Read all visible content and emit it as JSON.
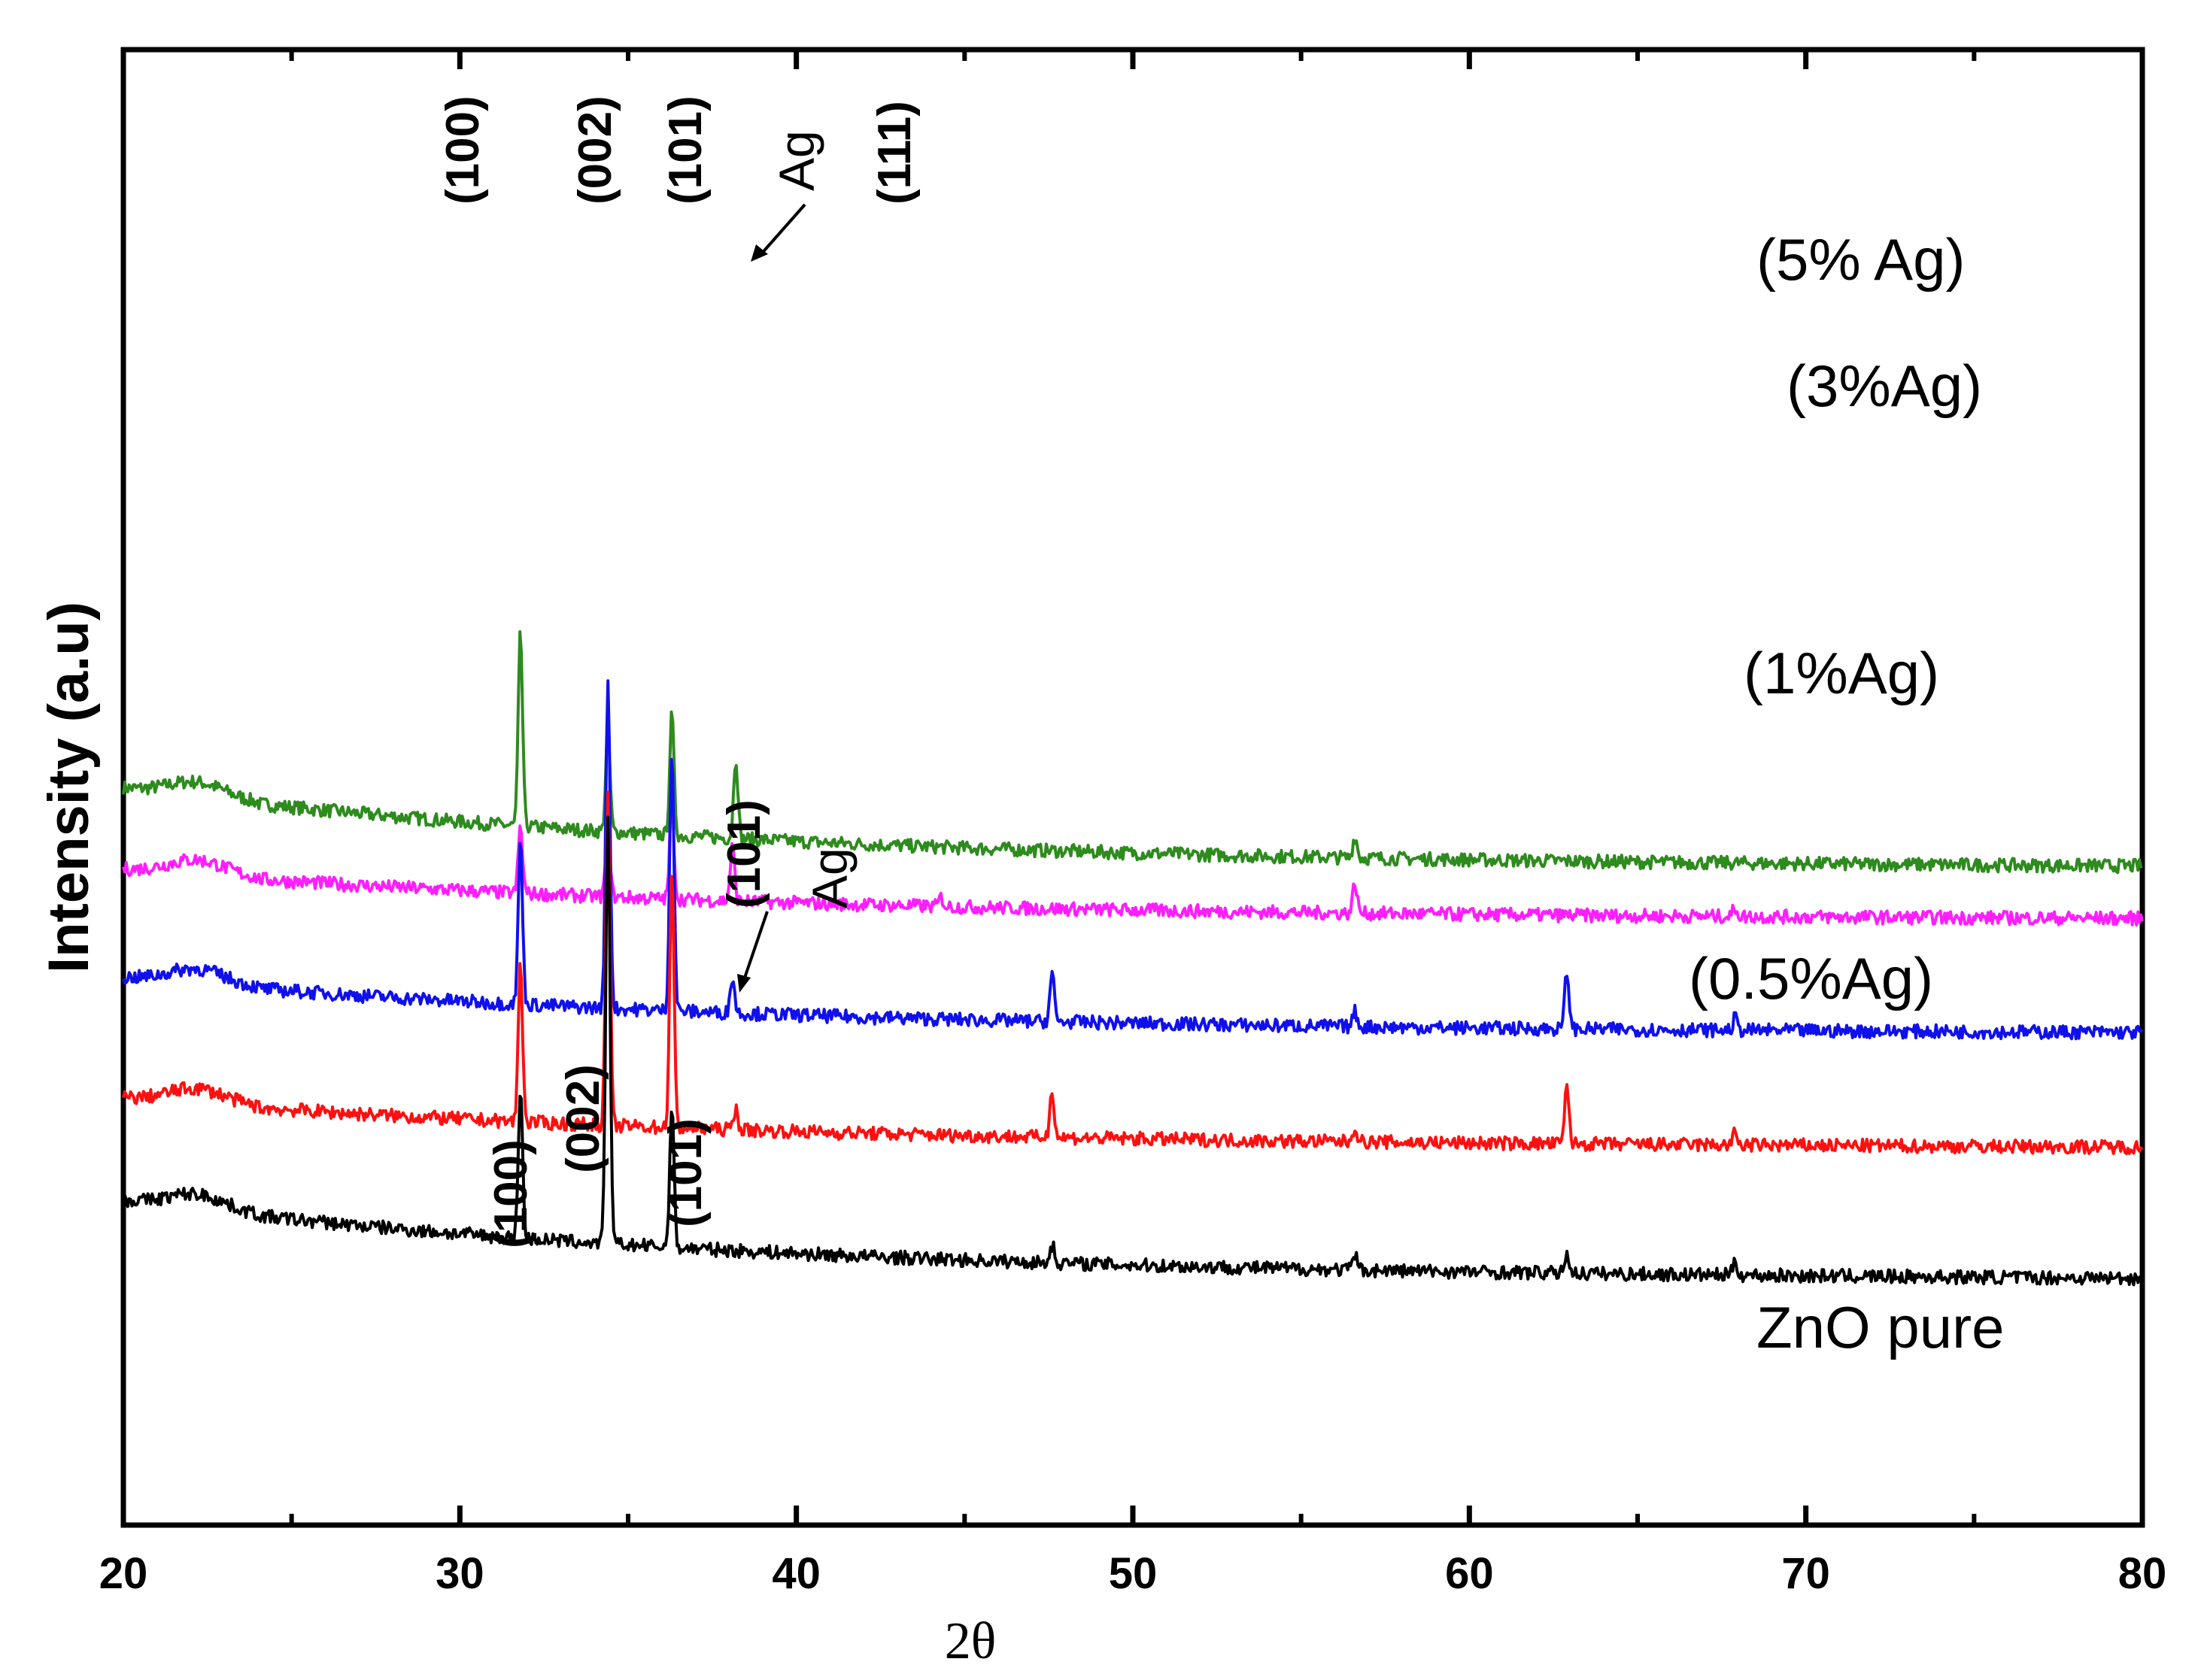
{
  "chart_data": {
    "type": "line",
    "title": "",
    "xlabel": "2θ",
    "ylabel": "Intensity (a.u)",
    "xlim": [
      20,
      80
    ],
    "x_ticks": [
      "20",
      "30",
      "40",
      "50",
      "60",
      "70",
      "80"
    ],
    "grid": false,
    "y_ticks_shown": false,
    "series": [
      {
        "name": "(5% Ag)",
        "color": "#2e8b1e",
        "baseline_start": 0.3,
        "baseline_end": 0.03,
        "offset": 0.55,
        "peaks": [
          {
            "x": 31.8,
            "h": 0.64
          },
          {
            "x": 34.4,
            "h": 0.33
          },
          {
            "x": 36.3,
            "h": 0.4
          },
          {
            "x": 38.2,
            "h": 0.27
          },
          {
            "x": 56.6,
            "h": 0.07
          }
        ]
      },
      {
        "name": "(3%Ag)",
        "color": "#ff1eff",
        "baseline_start": 0.2,
        "baseline_end": 0.03,
        "offset": 0.38,
        "peaks": [
          {
            "x": 31.8,
            "h": 0.22
          },
          {
            "x": 34.4,
            "h": 0.25
          },
          {
            "x": 36.3,
            "h": 0.32
          },
          {
            "x": 38.1,
            "h": 0.18
          },
          {
            "x": 44.3,
            "h": 0.03
          },
          {
            "x": 56.6,
            "h": 0.1
          },
          {
            "x": 67.9,
            "h": 0.03
          }
        ]
      },
      {
        "name": "(1%Ag)",
        "color": "#1010ee",
        "baseline_start": 0.22,
        "baseline_end": 0.03,
        "offset": 0.0,
        "peaks": [
          {
            "x": 31.8,
            "h": 0.55
          },
          {
            "x": 34.4,
            "h": 1.1
          },
          {
            "x": 36.3,
            "h": 0.88
          },
          {
            "x": 38.1,
            "h": 0.12
          },
          {
            "x": 47.6,
            "h": 0.16
          },
          {
            "x": 56.6,
            "h": 0.05
          },
          {
            "x": 62.9,
            "h": 0.19
          },
          {
            "x": 67.9,
            "h": 0.04
          }
        ]
      },
      {
        "name": "(0.5%Ag)",
        "color": "#ff1010",
        "baseline_start": 0.2,
        "baseline_end": 0.03,
        "offset": -0.38,
        "peaks": [
          {
            "x": 31.8,
            "h": 0.53
          },
          {
            "x": 34.4,
            "h": 1.1
          },
          {
            "x": 36.3,
            "h": 0.85
          },
          {
            "x": 38.2,
            "h": 0.07
          },
          {
            "x": 47.6,
            "h": 0.16
          },
          {
            "x": 56.6,
            "h": 0.05
          },
          {
            "x": 62.9,
            "h": 0.19
          },
          {
            "x": 67.9,
            "h": 0.04
          }
        ]
      },
      {
        "name": "ZnO pure",
        "color": "#000000",
        "baseline_start": 0.3,
        "baseline_end": 0.03,
        "offset": -0.82,
        "peaks": [
          {
            "x": 31.8,
            "h": 0.5
          },
          {
            "x": 34.4,
            "h": 1.4
          },
          {
            "x": 36.3,
            "h": 0.47
          },
          {
            "x": 47.6,
            "h": 0.06
          },
          {
            "x": 56.6,
            "h": 0.05
          },
          {
            "x": 62.9,
            "h": 0.07
          },
          {
            "x": 67.9,
            "h": 0.05
          }
        ]
      }
    ],
    "annotations": {
      "top_miller": [
        "(100)",
        "(002)",
        "(101)",
        "(111)"
      ],
      "top_ag": "Ag",
      "mid_miller": "(101)",
      "mid_ag": "Ag",
      "bottom_miller": [
        "(100)",
        "(002)",
        "(101)"
      ]
    }
  }
}
